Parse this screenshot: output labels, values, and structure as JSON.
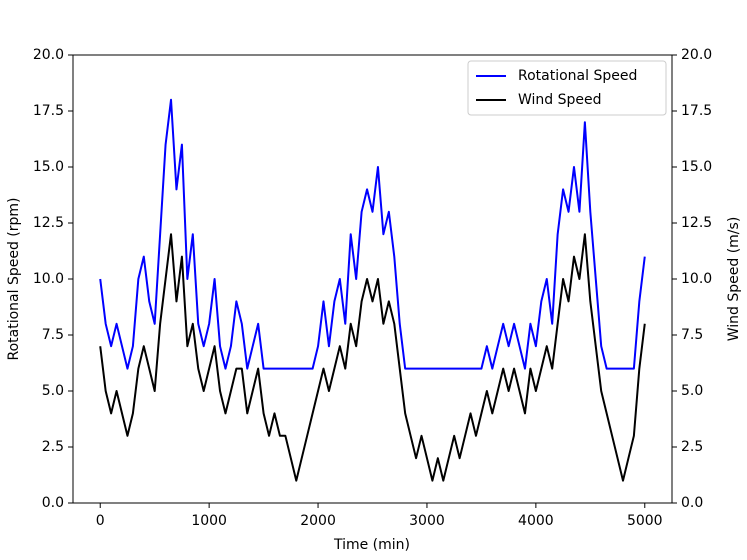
{
  "chart_data": {
    "type": "line",
    "xlabel": "Time (min)",
    "ylabel": "Rotational Speed (rpm)",
    "y2label": "Wind Speed (m/s)",
    "x": [
      0,
      50,
      100,
      150,
      200,
      250,
      300,
      350,
      400,
      450,
      500,
      550,
      600,
      650,
      700,
      750,
      800,
      850,
      900,
      950,
      1000,
      1050,
      1100,
      1150,
      1200,
      1250,
      1300,
      1350,
      1400,
      1450,
      1500,
      1550,
      1600,
      1650,
      1700,
      1750,
      1800,
      1850,
      1900,
      1950,
      2000,
      2050,
      2100,
      2150,
      2200,
      2250,
      2300,
      2350,
      2400,
      2450,
      2500,
      2550,
      2600,
      2650,
      2700,
      2750,
      2800,
      2850,
      2900,
      2950,
      3000,
      3050,
      3100,
      3150,
      3200,
      3250,
      3300,
      3350,
      3400,
      3450,
      3500,
      3550,
      3600,
      3650,
      3700,
      3750,
      3800,
      3850,
      3900,
      3950,
      4000,
      4050,
      4100,
      4150,
      4200,
      4250,
      4300,
      4350,
      4400,
      4450,
      4500,
      4550,
      4600,
      4650,
      4700,
      4750,
      4800,
      4850,
      4900,
      4950,
      5000
    ],
    "series": [
      {
        "name": "Rotational Speed",
        "color": "#0000ff",
        "axis": "y",
        "values": [
          10,
          8,
          7,
          8,
          7,
          6,
          7,
          10,
          11,
          9,
          8,
          12,
          16,
          18,
          14,
          16,
          10,
          12,
          8,
          7,
          8,
          10,
          7,
          6,
          7,
          9,
          8,
          6,
          7,
          8,
          6,
          6,
          6,
          6,
          6,
          6,
          6,
          6,
          6,
          6,
          7,
          9,
          7,
          9,
          10,
          8,
          12,
          10,
          13,
          14,
          13,
          15,
          12,
          13,
          11,
          8,
          6,
          6,
          6,
          6,
          6,
          6,
          6,
          6,
          6,
          6,
          6,
          6,
          6,
          6,
          6,
          7,
          6,
          7,
          8,
          7,
          8,
          7,
          6,
          8,
          7,
          9,
          10,
          8,
          12,
          14,
          13,
          15,
          13,
          17,
          13,
          10,
          7,
          6,
          6,
          6,
          6,
          6,
          6,
          9,
          11
        ]
      },
      {
        "name": "Wind Speed",
        "color": "#000000",
        "axis": "y2",
        "values": [
          7,
          5,
          4,
          5,
          4,
          3,
          4,
          6,
          7,
          6,
          5,
          8,
          10,
          12,
          9,
          11,
          7,
          8,
          6,
          5,
          6,
          7,
          5,
          4,
          5,
          6,
          6,
          4,
          5,
          6,
          4,
          3,
          4,
          3,
          3,
          2,
          1,
          2,
          3,
          4,
          5,
          6,
          5,
          6,
          7,
          6,
          8,
          7,
          9,
          10,
          9,
          10,
          8,
          9,
          8,
          6,
          4,
          3,
          2,
          3,
          2,
          1,
          2,
          1,
          2,
          3,
          2,
          3,
          4,
          3,
          4,
          5,
          4,
          5,
          6,
          5,
          6,
          5,
          4,
          6,
          5,
          6,
          7,
          6,
          8,
          10,
          9,
          11,
          10,
          12,
          9,
          7,
          5,
          4,
          3,
          2,
          1,
          2,
          3,
          6,
          8
        ]
      }
    ],
    "xlim": [
      -250,
      5250
    ],
    "xticks": [
      0,
      1000,
      2000,
      3000,
      4000,
      5000
    ],
    "ylim": [
      0,
      20
    ],
    "yticks": [
      {
        "value": 0,
        "label": "0.0"
      },
      2.5,
      {
        "value": 5,
        "label": "5.0"
      },
      7.5,
      {
        "value": 10,
        "label": "10.0"
      },
      12.5,
      {
        "value": 15,
        "label": "15.0"
      },
      17.5,
      {
        "value": 20,
        "label": "20.0"
      }
    ],
    "y2lim": [
      0,
      20
    ],
    "y2ticks": [
      {
        "value": 0,
        "label": "0.0"
      },
      2.5,
      {
        "value": 5,
        "label": "5.0"
      },
      7.5,
      {
        "value": 10,
        "label": "10.0"
      },
      12.5,
      {
        "value": 15,
        "label": "15.0"
      },
      17.5,
      {
        "value": 20,
        "label": "20.0"
      }
    ],
    "legend": "upper right",
    "grid": false
  }
}
